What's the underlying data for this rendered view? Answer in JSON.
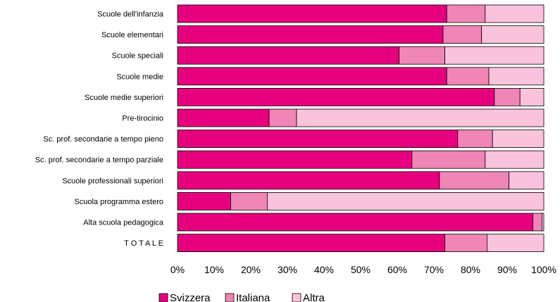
{
  "chart_data": {
    "type": "bar",
    "orientation": "horizontal",
    "stacked": true,
    "percent_stacked": true,
    "categories": [
      "Scuole dell'infanzia",
      "Scuole elementari",
      "Scuole speciali",
      "Scuole medie",
      "Scuole medie superiori",
      "Pre-tirocinio",
      "Sc. prof. secondarie a tempo pieno",
      "Sc. prof. secondarie a tempo parziale",
      "Scuole professionali superiori",
      "Scuola programma estero",
      "Alta scuola pedagogica",
      "T O T A L E"
    ],
    "series": [
      {
        "name": "Svizzera",
        "color": "#e6007e",
        "values": [
          73.5,
          72.5,
          60.5,
          73.5,
          86.5,
          25,
          76.5,
          64,
          71.5,
          14.5,
          97,
          73
        ]
      },
      {
        "name": "Italiana",
        "color": "#ef86b6",
        "values": [
          10.5,
          10.5,
          12.5,
          11.5,
          7,
          7.5,
          9.5,
          20,
          19,
          10,
          2.5,
          11.5
        ]
      },
      {
        "name": "Altra",
        "color": "#f9c3dc",
        "values": [
          16,
          17,
          27,
          15,
          6.5,
          67.5,
          14,
          16,
          9.5,
          75.5,
          0.5,
          15.5
        ]
      }
    ],
    "x_ticks": [
      "0%",
      "10%",
      "20%",
      "30%",
      "40%",
      "50%",
      "60%",
      "70%",
      "80%",
      "90%",
      "100%"
    ],
    "xlim": [
      0,
      100
    ],
    "grid": false,
    "legend_position": "bottom-center"
  }
}
